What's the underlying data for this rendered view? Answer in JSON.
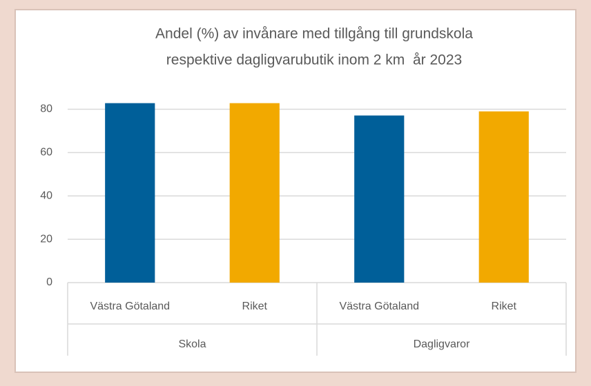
{
  "chart_data": {
    "type": "bar",
    "title": [
      "Andel (%) av invånare med tillgång till grundskola",
      "respektive dagligvarubutik inom 2 km  år 2023"
    ],
    "categories": [
      "Skola",
      "Dagligvaror"
    ],
    "series": [
      {
        "name": "Västra Götaland",
        "color": "#005f99",
        "values": [
          82.8,
          77.1
        ]
      },
      {
        "name": "Riket",
        "color": "#f2a900",
        "values": [
          82.8,
          79.0
        ]
      }
    ],
    "ylim": [
      0,
      90
    ],
    "yticks": [
      0,
      20,
      40,
      60,
      80
    ],
    "grid": true
  }
}
